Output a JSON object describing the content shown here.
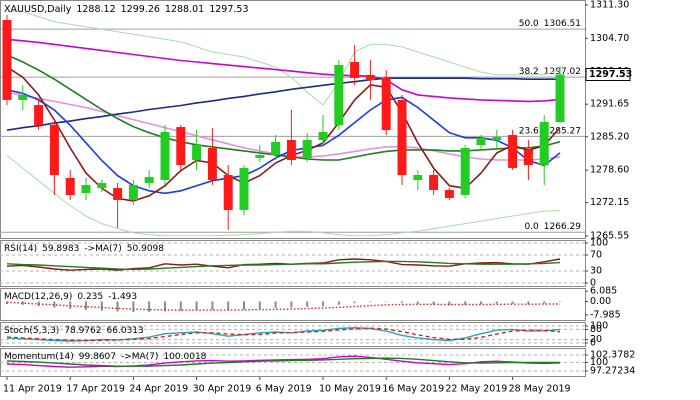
{
  "chart_data": [
    {
      "type": "candlestick",
      "title": "XAUUSD,Daily",
      "readout": [
        1288.12,
        1299.26,
        1288.01,
        1297.53
      ],
      "categories": [
        "11 Apr 2019",
        null,
        null,
        null,
        "17 Apr 2019",
        null,
        null,
        null,
        "24 Apr 2019",
        null,
        null,
        null,
        "30 Apr 2019",
        null,
        null,
        null,
        "6 May 2019",
        null,
        null,
        null,
        "10 May 2019",
        null,
        null,
        null,
        "16 May 2019",
        null,
        null,
        null,
        "22 May 2019",
        null,
        null,
        null,
        "28 May 2019",
        null,
        null,
        null
      ],
      "open": [
        1308.33,
        1292.48,
        1291.49,
        1287.53,
        1277.04,
        1274.07,
        1275.05,
        1275.05,
        1272.68,
        1276.05,
        1276.64,
        1287.14,
        1280.6,
        1282.98,
        1277.63,
        1270.7,
        1281.0,
        1281.59,
        1284.56,
        1281.0,
        1284.56,
        1287.53,
        1300.01,
        1297.44,
        1296.84,
        1292.48,
        1276.64,
        1277.63,
        1274.66,
        1273.67,
        1283.57,
        1284.56,
        1285.55,
        1282.58,
        1279.61,
        1288.12
      ],
      "high": [
        1309.32,
        1295.46,
        1292.48,
        1288.52,
        1278.62,
        1277.04,
        1276.64,
        1276.05,
        1276.64,
        1278.62,
        1287.53,
        1287.53,
        1286.54,
        1286.94,
        1279.61,
        1279.61,
        1283.57,
        1285.55,
        1290.5,
        1285.95,
        1289.51,
        1300.41,
        1303.38,
        1300.41,
        1298.43,
        1293.47,
        1278.62,
        1278.62,
        1275.05,
        1283.57,
        1285.55,
        1286.54,
        1286.54,
        1284.56,
        1289.51,
        1299.26
      ],
      "low": [
        1291.49,
        1290.5,
        1286.54,
        1273.67,
        1272.68,
        1272.68,
        1274.26,
        1267.13,
        1271.69,
        1275.05,
        1275.65,
        1278.62,
        1278.62,
        1275.65,
        1266.74,
        1269.71,
        1280.2,
        1280.6,
        1279.61,
        1280.2,
        1283.57,
        1286.54,
        1295.46,
        1292.48,
        1285.55,
        1275.65,
        1274.66,
        1273.67,
        1272.68,
        1273.07,
        1282.58,
        1282.98,
        1278.62,
        1276.64,
        1275.65,
        1288.01
      ],
      "close": [
        1292.48,
        1293.47,
        1287.53,
        1277.63,
        1273.67,
        1275.65,
        1276.05,
        1272.68,
        1275.65,
        1277.23,
        1286.15,
        1279.61,
        1283.57,
        1276.64,
        1270.7,
        1279.02,
        1281.59,
        1284.17,
        1280.6,
        1284.56,
        1286.15,
        1299.42,
        1296.84,
        1296.45,
        1286.54,
        1277.63,
        1277.63,
        1274.66,
        1273.07,
        1282.98,
        1284.96,
        1285.16,
        1279.02,
        1279.61,
        1288.13,
        1297.53
      ],
      "up_color": "#22cc22",
      "down_color": "#ff1a1a",
      "lines": [
        {
          "color": "#a8dca8",
          "values": [
            1310,
            1310,
            1309,
            1308,
            1307.5,
            1307,
            1306.5,
            1306,
            1305.5,
            1305,
            1304.5,
            1304,
            1303,
            1302,
            1301.5,
            1301,
            1300,
            1299,
            1297,
            1294,
            1291.5,
            1296,
            1302,
            1303.5,
            1303.5,
            1303,
            1302,
            1301,
            1300,
            1299,
            1298,
            1297.5,
            1297.5,
            1297.5,
            1297.5,
            1298.5
          ]
        },
        {
          "color": "#a8dca8",
          "values": [
            1281.5,
            1279,
            1276.5,
            1274,
            1271.5,
            1269.5,
            1268,
            1267,
            1266.2,
            1265.8,
            1265.6,
            1265.6,
            1265.6,
            1265.6,
            1265.7,
            1265.8,
            1266,
            1266.3,
            1266.5,
            1266.5,
            1266.2,
            1265.8,
            1265.6,
            1265.6,
            1265.8,
            1266.2,
            1266.5,
            1267,
            1267.5,
            1268,
            1268.5,
            1269,
            1269.5,
            1270,
            1270.5,
            1270.6
          ]
        },
        {
          "color": "#e090e0",
          "values": [
            1294,
            1293.4,
            1292.8,
            1292.2,
            1291.6,
            1291.0,
            1290.2,
            1289.4,
            1288.6,
            1287.8,
            1287.0,
            1286.2,
            1285.4,
            1284.6,
            1283.8,
            1283.0,
            1282.4,
            1281.8,
            1281.4,
            1281.2,
            1281.4,
            1281.8,
            1282.3,
            1282.8,
            1283.2,
            1283.3,
            1283.0,
            1282.4,
            1281.8,
            1281.2,
            1280.8,
            1280.6,
            1280.6,
            1280.6,
            1280.8,
            1281.2
          ]
        },
        {
          "color": "#d000d0",
          "values": [
            1304.5,
            1304.2,
            1303.9,
            1303.5,
            1303.1,
            1302.7,
            1302.3,
            1301.9,
            1301.5,
            1301.1,
            1300.7,
            1300.3,
            1300.0,
            1299.7,
            1299.4,
            1299.1,
            1298.8,
            1298.5,
            1298.2,
            1297.9,
            1297.6,
            1297.4,
            1297.3,
            1297.2,
            1296.5,
            1294.5,
            1293.5,
            1293.2,
            1292.9,
            1292.7,
            1292.5,
            1292.4,
            1292.3,
            1292.2,
            1292.3,
            1292.6
          ]
        },
        {
          "color": "#1c2a8c",
          "values": [
            1286.5,
            1287.0,
            1287.4,
            1287.9,
            1288.3,
            1288.8,
            1289.2,
            1289.7,
            1290.1,
            1290.6,
            1291.0,
            1291.4,
            1291.9,
            1292.3,
            1292.8,
            1293.2,
            1293.7,
            1294.1,
            1294.6,
            1295.0,
            1295.4,
            1295.8,
            1296.1,
            1296.5,
            1296.8,
            1296.8,
            1296.8,
            1296.8,
            1296.8,
            1296.8,
            1296.7,
            1296.7,
            1296.7,
            1296.6,
            1296.6,
            1296.6
          ]
        },
        {
          "color": "#1e7d1e",
          "values": [
            1301.4,
            1300.0,
            1298.4,
            1296.6,
            1294.6,
            1292.6,
            1290.6,
            1288.8,
            1287.2,
            1286.0,
            1285.0,
            1284.2,
            1283.6,
            1283.2,
            1282.8,
            1282.4,
            1282.0,
            1281.6,
            1281.2,
            1280.8,
            1280.6,
            1280.6,
            1281.2,
            1281.8,
            1282.3,
            1282.6,
            1282.6,
            1282.6,
            1282.4,
            1282.4,
            1282.6,
            1282.8,
            1283.0,
            1283.0,
            1283.4,
            1284.2
          ]
        },
        {
          "color": "#1a3ce0",
          "values": [
            1294.5,
            1293.8,
            1292.5,
            1290.5,
            1287.5,
            1284.0,
            1280.5,
            1277.5,
            1275.5,
            1274.5,
            1274.0,
            1274.5,
            1275.5,
            1276.5,
            1277.0,
            1277.5,
            1279.0,
            1281.0,
            1282.5,
            1283.0,
            1283.5,
            1285.5,
            1288.0,
            1290.5,
            1292.5,
            1293.0,
            1291.0,
            1288.5,
            1286.0,
            1285.0,
            1285.0,
            1284.5,
            1283.0,
            1280.5,
            1279.5,
            1282.0
          ]
        },
        {
          "color": "#8b1a1a",
          "values": [
            1299.0,
            1297.0,
            1293.5,
            1288.5,
            1283.0,
            1278.0,
            1275.0,
            1273.0,
            1272.5,
            1273.5,
            1275.5,
            1278.5,
            1280.5,
            1280.0,
            1277.5,
            1276.0,
            1277.5,
            1280.0,
            1281.5,
            1282.5,
            1284.0,
            1288.0,
            1292.5,
            1295.5,
            1295.0,
            1290.0,
            1284.0,
            1279.0,
            1275.5,
            1275.0,
            1278.0,
            1282.0,
            1283.5,
            1282.5,
            1283.5,
            1287.0
          ]
        }
      ],
      "levels": [
        {
          "ratio": "50.0",
          "value": 1306.51
        },
        {
          "ratio": "38.2",
          "value": 1297.02
        },
        {
          "ratio": "23.6",
          "value": 1285.27
        },
        {
          "ratio": "0.0",
          "value": 1266.29
        }
      ],
      "ylim": [
        1265.15,
        1312.29
      ],
      "yticks": [
        {
          "value": 1311.3,
          "label": "1311.30"
        },
        {
          "value": 1304.7,
          "label": "1304.70"
        },
        {
          "value": 1298.1,
          "label": "1298.10"
        },
        1291.65,
        {
          "value": 1285.2,
          "label": "1285.20"
        },
        {
          "value": 1278.6,
          "label": "1278.60"
        },
        1272.15,
        1265.55
      ],
      "grid": false
    },
    {
      "type": "line",
      "readout": [
        "RSI(14)",
        59.8983,
        "->MA(7)",
        50.9098
      ],
      "series": [
        {
          "color": "#8b1a1a",
          "style": "solid",
          "values": [
            42,
            44,
            40,
            35,
            32,
            34,
            35,
            32,
            36,
            38,
            48,
            45,
            47,
            42,
            38,
            46,
            47,
            49,
            47,
            49,
            50,
            58,
            60,
            58,
            54,
            46,
            45,
            43,
            42,
            48,
            50,
            51,
            48,
            47,
            53,
            59.9
          ]
        },
        {
          "color": "#1e7d1e",
          "style": "solid",
          "values": [
            48,
            46,
            45,
            43,
            41,
            39,
            37,
            35,
            34,
            35,
            37,
            39,
            41,
            43,
            44,
            45,
            45,
            46,
            47,
            48,
            48,
            50,
            52,
            53,
            54,
            54,
            53,
            51,
            49,
            48,
            47,
            47,
            47,
            48,
            49,
            50.9
          ]
        }
      ],
      "ylim": [
        -7.5,
        107.5
      ],
      "yticks": [
        100,
        70,
        30,
        0
      ],
      "grid": true
    },
    {
      "type": "bar",
      "readout": [
        "MACD(12,26,9)",
        0.235,
        -1.493
      ],
      "series": [
        {
          "color": "#8c8c8c",
          "style": "bar",
          "values": [
            -1.5,
            -2,
            -2.8,
            -3.6,
            -4.4,
            -5.0,
            -5.5,
            -6.0,
            -6.2,
            -6.2,
            -5.8,
            -5.5,
            -5.2,
            -5.0,
            -5.0,
            -4.8,
            -4.5,
            -4.0,
            -3.6,
            -3.2,
            -2.8,
            -2.0,
            -1.0,
            -0.4,
            -0.2,
            -0.8,
            -1.4,
            -1.8,
            -2.2,
            -2.0,
            -1.6,
            -1.2,
            -1.4,
            -1.6,
            -1.2,
            0.235
          ]
        },
        {
          "color": "#e02020",
          "style": "dotted",
          "values": [
            -0.5,
            -1,
            -1.5,
            -2,
            -2.6,
            -3.1,
            -3.6,
            -4.1,
            -4.5,
            -4.8,
            -5.0,
            -5.1,
            -5.1,
            -5.1,
            -5.1,
            -5.0,
            -4.9,
            -4.7,
            -4.5,
            -4.2,
            -3.9,
            -3.5,
            -3.0,
            -2.5,
            -2.0,
            -1.8,
            -1.7,
            -1.7,
            -1.8,
            -1.8,
            -1.8,
            -1.7,
            -1.6,
            -1.6,
            -1.5,
            -1.493
          ]
        }
      ],
      "ylim": [
        -11,
        8
      ],
      "yticks": [
        6.085,
        {
          "value": 0,
          "label": "0.00"
        },
        -7.985
      ],
      "grid": false
    },
    {
      "type": "line",
      "readout": [
        "Stoch(5,3,3)",
        78.9762,
        66.0313
      ],
      "series": [
        {
          "color": "#20a8c0",
          "style": "solid",
          "values": [
            30,
            25,
            20,
            15,
            12,
            15,
            20,
            18,
            25,
            35,
            55,
            60,
            65,
            55,
            40,
            50,
            60,
            65,
            60,
            70,
            75,
            85,
            90,
            85,
            70,
            45,
            30,
            20,
            15,
            30,
            55,
            75,
            80,
            70,
            72,
            78.9762
          ]
        },
        {
          "color": "#e02020",
          "style": "dashed",
          "values": [
            35,
            30,
            25,
            20,
            17,
            15,
            16,
            18,
            21,
            26,
            38,
            50,
            60,
            60,
            53,
            48,
            50,
            58,
            62,
            65,
            68,
            77,
            83,
            87,
            82,
            67,
            48,
            32,
            22,
            22,
            33,
            53,
            70,
            75,
            74,
            66.0313
          ]
        }
      ],
      "ylim": [
        -17.6,
        123.5
      ],
      "yticks": [
        100,
        80,
        20,
        0
      ],
      "grid": true
    },
    {
      "type": "line",
      "readout": [
        "Momentum(14)",
        99.8607,
        "->MA(7)",
        100.0018
      ],
      "series": [
        {
          "color": "#d000d0",
          "style": "solid",
          "values": [
            99.5,
            99.3,
            99.0,
            98.7,
            98.5,
            98.6,
            98.8,
            98.7,
            98.9,
            99.2,
            99.8,
            100.2,
            100.5,
            100.6,
            100.4,
            100.5,
            100.7,
            100.8,
            100.9,
            101.0,
            101.2,
            101.8,
            102.0,
            101.6,
            101.0,
            100.4,
            99.9,
            99.6,
            99.3,
            99.6,
            100.2,
            100.4,
            100.1,
            99.8,
            99.7,
            99.8607
          ]
        },
        {
          "color": "#1e7d1e",
          "style": "solid",
          "values": [
            100.5,
            100.3,
            100.1,
            99.8,
            99.5,
            99.2,
            99.0,
            98.8,
            98.8,
            98.8,
            99.0,
            99.2,
            99.5,
            99.8,
            100.0,
            100.2,
            100.4,
            100.5,
            100.6,
            100.7,
            100.8,
            101.0,
            101.2,
            101.3,
            101.4,
            101.3,
            101.0,
            100.6,
            100.2,
            99.9,
            99.8,
            99.9,
            100.0,
            100.0,
            100.0,
            100.0018
          ]
        }
      ],
      "ylim": [
        95.68,
        104.61
      ],
      "yticks": [
        102.3782,
        100,
        97.27234
      ],
      "grid": true
    }
  ]
}
